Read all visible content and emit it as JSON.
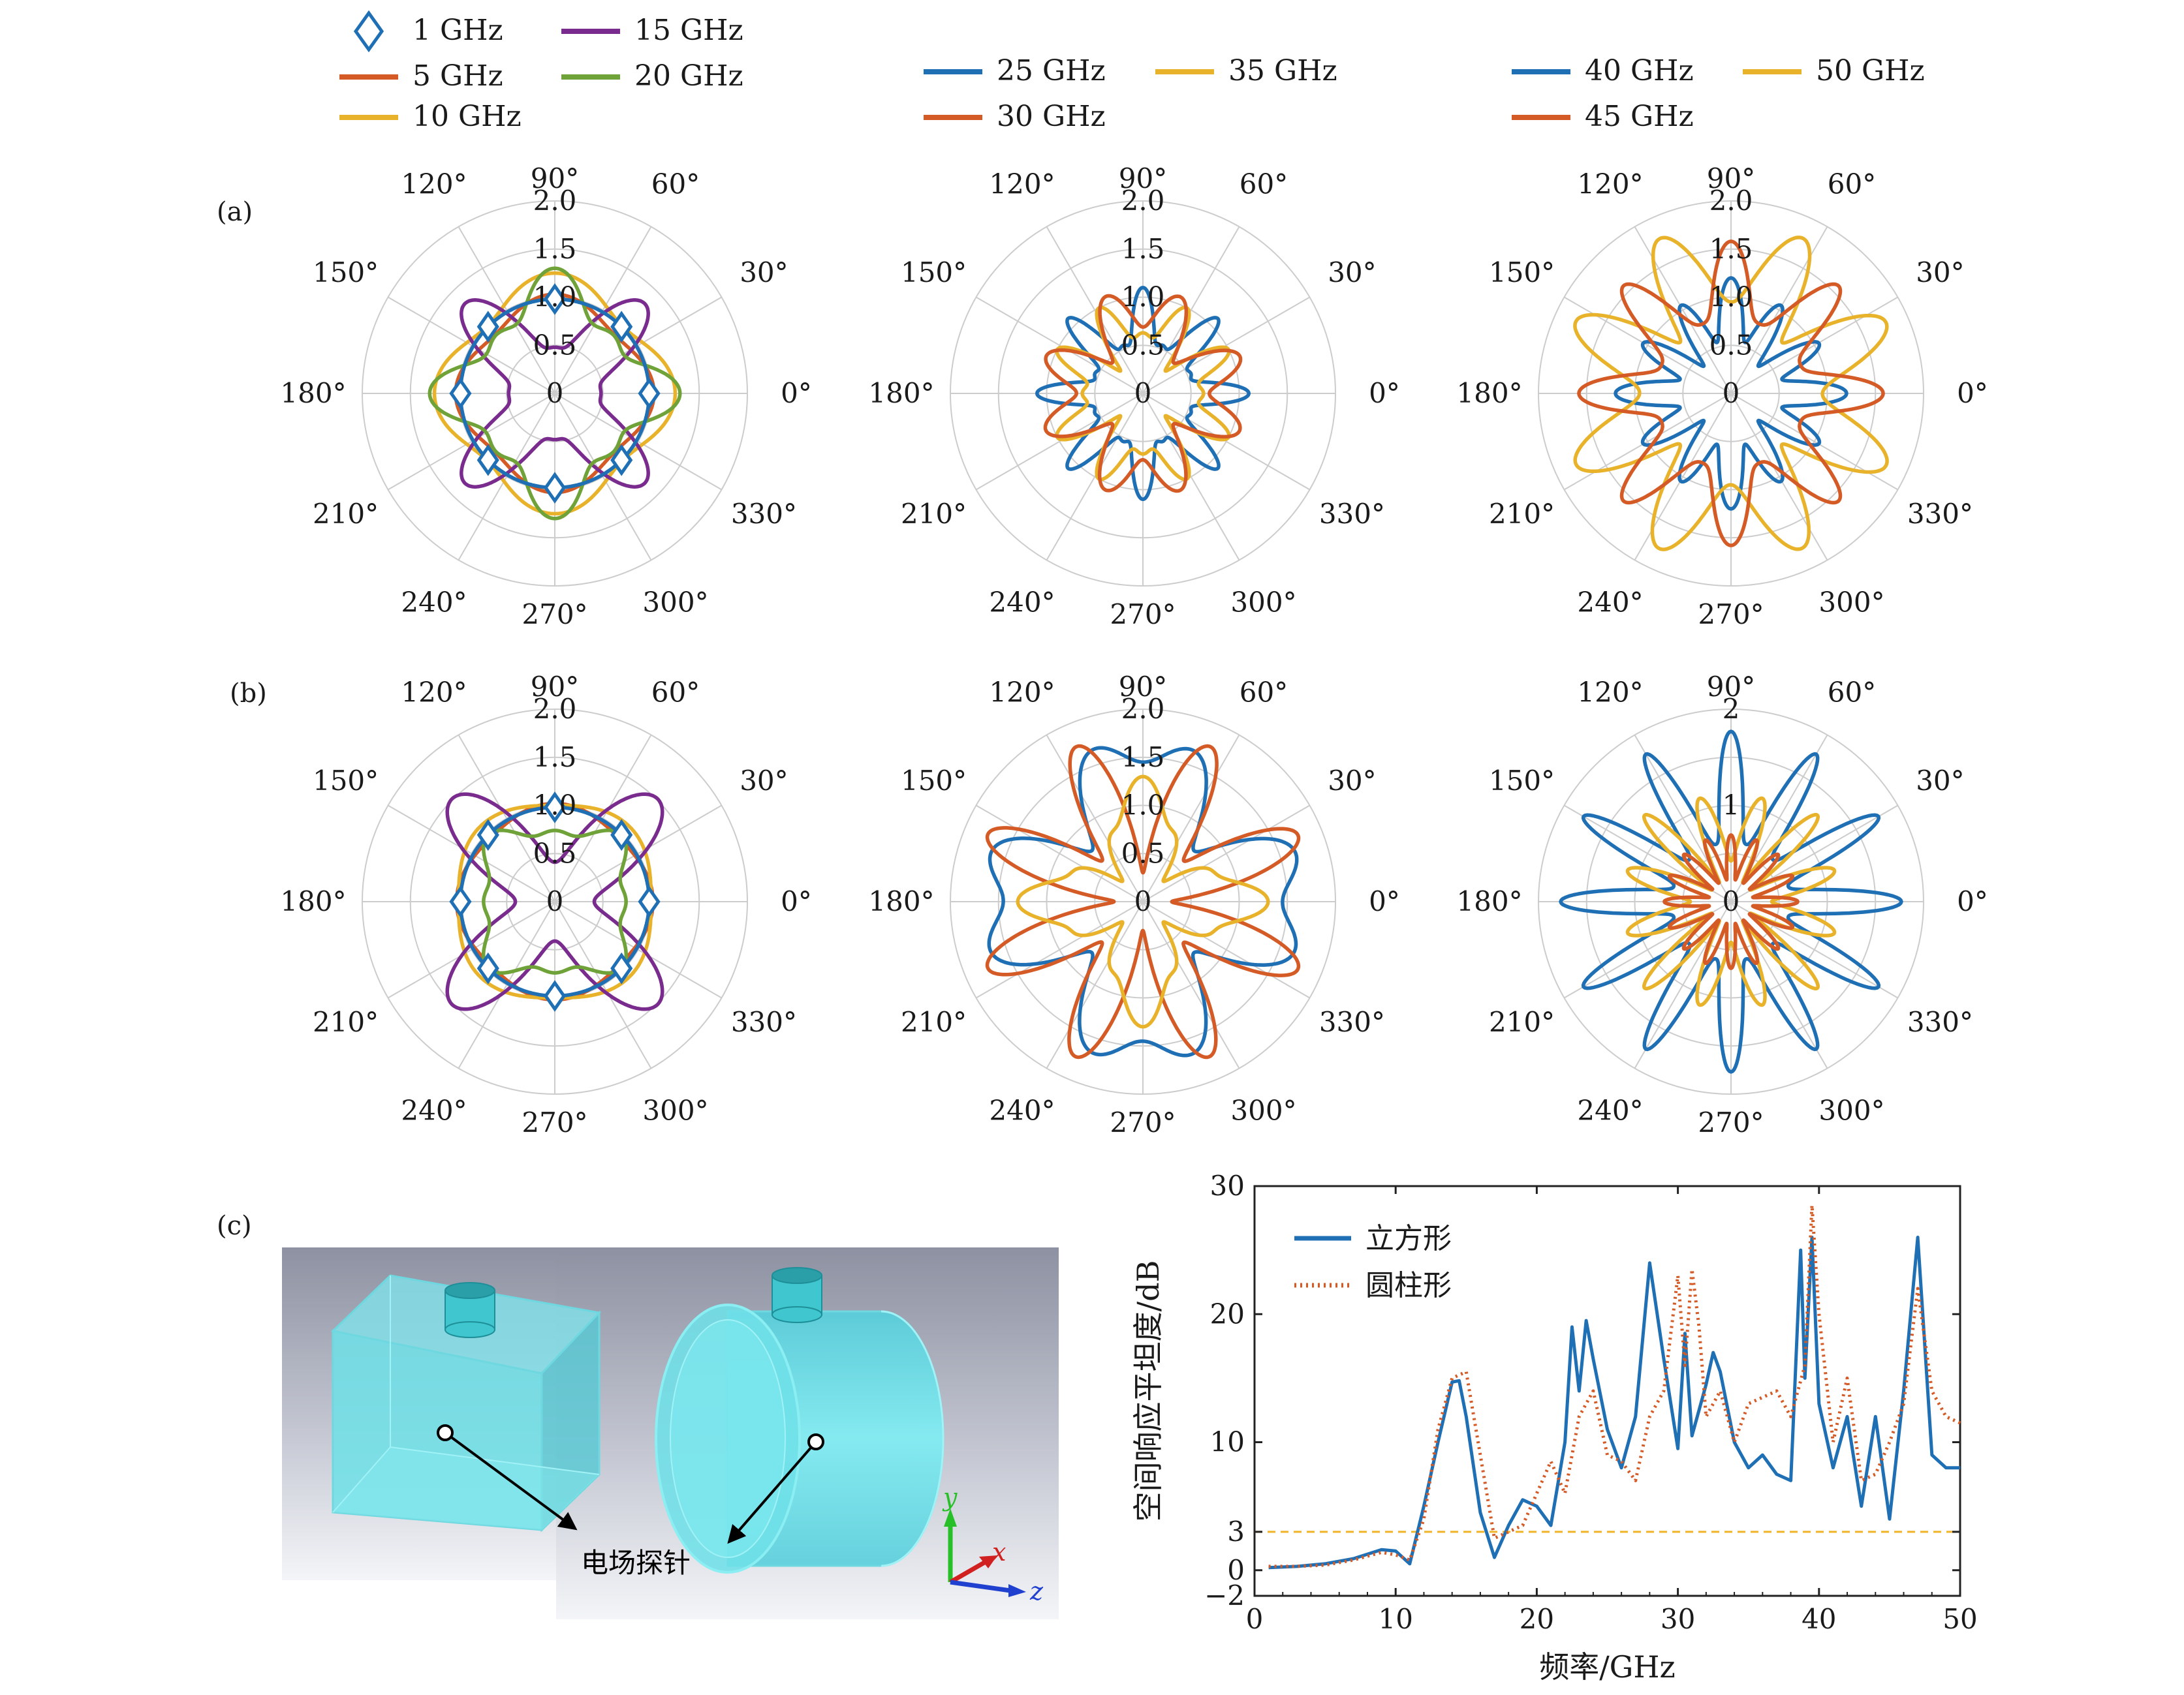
{
  "panel_labels": {
    "a": "(a)",
    "b": "(b)",
    "c": "(c)"
  },
  "colors": {
    "blue": "#1f6fb5",
    "orange": "#d45a26",
    "yellow": "#e8b32a",
    "purple": "#7a2c8e",
    "green": "#6fa238",
    "grid": "#cccccc",
    "ref_line": "#f0b429",
    "cyan": "#5ee0e8"
  },
  "legends": [
    {
      "items": [
        {
          "label": "1 GHz",
          "color": "#1f6fb5",
          "marker": "diamond"
        },
        {
          "label": "15 GHz",
          "color": "#7a2c8e",
          "marker": "line"
        },
        {
          "label": "5 GHz",
          "color": "#d45a26",
          "marker": "line"
        },
        {
          "label": "20 GHz",
          "color": "#6fa238",
          "marker": "line"
        },
        {
          "label": "10 GHz",
          "color": "#e8b32a",
          "marker": "line"
        }
      ]
    },
    {
      "items": [
        {
          "label": "25 GHz",
          "color": "#1f6fb5",
          "marker": "line"
        },
        {
          "label": "35 GHz",
          "color": "#e8b32a",
          "marker": "line"
        },
        {
          "label": "30 GHz",
          "color": "#d45a26",
          "marker": "line"
        }
      ]
    },
    {
      "items": [
        {
          "label": "40 GHz",
          "color": "#1f6fb5",
          "marker": "line"
        },
        {
          "label": "50 GHz",
          "color": "#e8b32a",
          "marker": "line"
        },
        {
          "label": "45 GHz",
          "color": "#d45a26",
          "marker": "line"
        }
      ]
    }
  ],
  "angle_labels": [
    "0°",
    "30°",
    "60°",
    "90°",
    "120°",
    "150°",
    "180°",
    "210°",
    "240°",
    "270°",
    "300°",
    "330°"
  ],
  "polar_plots": [
    {
      "id": "a1",
      "rmax": 2.0,
      "rticks": [
        "0",
        "0.5",
        "1.0",
        "1.5",
        "2.0"
      ],
      "series": [
        {
          "name": "5 GHz",
          "color": "#d45a26",
          "base": 0.95,
          "terms": [
            [
              4,
              0.08,
              0.0
            ]
          ]
        },
        {
          "name": "10 GHz",
          "color": "#e8b32a",
          "base": 1.12,
          "terms": [
            [
              4,
              0.13,
              0.0
            ]
          ]
        },
        {
          "name": "15 GHz",
          "color": "#7a2c8e",
          "base": 0.78,
          "terms": [
            [
              4,
              -0.42,
              0.0
            ],
            [
              8,
              0.12,
              0.0
            ]
          ]
        },
        {
          "name": "20 GHz",
          "color": "#6fa238",
          "base": 0.98,
          "terms": [
            [
              4,
              0.22,
              0.0
            ],
            [
              8,
              0.1,
              0.0
            ]
          ]
        },
        {
          "name": "1 GHz",
          "color": "#1f6fb5",
          "base": 0.98,
          "terms": [
            [
              4,
              0.0,
              0.0
            ]
          ],
          "markers": true
        }
      ]
    },
    {
      "id": "a2",
      "rmax": 2.0,
      "rticks": [
        "0",
        "0.5",
        "1.0",
        "1.5",
        "2.0"
      ],
      "series": [
        {
          "name": "25 GHz",
          "color": "#1f6fb5",
          "base": 0.72,
          "terms": [
            [
              8,
              0.28,
              0.0
            ],
            [
              16,
              0.1,
              0.0
            ]
          ]
        },
        {
          "name": "35 GHz",
          "color": "#e8b32a",
          "base": 0.7,
          "terms": [
            [
              8,
              -0.22,
              0.0
            ],
            [
              12,
              0.15,
              0.0
            ]
          ]
        },
        {
          "name": "30 GHz",
          "color": "#d45a26",
          "base": 0.82,
          "terms": [
            [
              8,
              0.25,
              0.39
            ],
            [
              4,
              0.12,
              0.0
            ]
          ]
        }
      ]
    },
    {
      "id": "a3",
      "rmax": 2.0,
      "rticks": [
        "0",
        "0.5",
        "1.0",
        "1.5",
        "2.0"
      ],
      "series": [
        {
          "name": "40 GHz",
          "color": "#1f6fb5",
          "base": 0.8,
          "terms": [
            [
              12,
              0.3,
              0.0
            ],
            [
              4,
              0.1,
              0.0
            ]
          ]
        },
        {
          "name": "50 GHz",
          "color": "#e8b32a",
          "base": 1.3,
          "terms": [
            [
              8,
              0.45,
              0.39
            ],
            [
              12,
              0.1,
              0.0
            ]
          ]
        },
        {
          "name": "45 GHz",
          "color": "#d45a26",
          "base": 1.1,
          "terms": [
            [
              8,
              0.4,
              0.0
            ],
            [
              16,
              0.08,
              0.0
            ]
          ]
        }
      ]
    },
    {
      "id": "b1",
      "rmax": 2.0,
      "rticks": [
        "0",
        "0.5",
        "1.0",
        "1.5",
        "2.0"
      ],
      "series": [
        {
          "name": "5 GHz",
          "color": "#d45a26",
          "base": 0.98,
          "terms": [
            [
              4,
              0.04,
              0.0
            ]
          ]
        },
        {
          "name": "10 GHz",
          "color": "#e8b32a",
          "base": 1.05,
          "terms": [
            [
              4,
              0.05,
              0.785
            ]
          ]
        },
        {
          "name": "15 GHz",
          "color": "#7a2c8e",
          "base": 0.88,
          "terms": [
            [
              4,
              -0.55,
              0.0
            ],
            [
              8,
              0.08,
              0.0
            ]
          ]
        },
        {
          "name": "20 GHz",
          "color": "#6fa238",
          "base": 0.8,
          "terms": [
            [
              4,
              0.12,
              0.785
            ],
            [
              8,
              0.06,
              0.0
            ]
          ]
        },
        {
          "name": "1 GHz",
          "color": "#1f6fb5",
          "base": 0.98,
          "terms": [
            [
              4,
              0.0,
              0.0
            ]
          ],
          "markers": true
        }
      ]
    },
    {
      "id": "b2",
      "rmax": 2.0,
      "rticks": [
        "0",
        "0.5",
        "1.0",
        "1.5",
        "2.0"
      ],
      "series": [
        {
          "name": "25 GHz",
          "color": "#1f6fb5",
          "base": 1.35,
          "terms": [
            [
              4,
              0.35,
              0.0
            ],
            [
              8,
              0.25,
              0.39
            ]
          ]
        },
        {
          "name": "30 GHz",
          "color": "#d45a26",
          "base": 1.1,
          "terms": [
            [
              8,
              0.65,
              0.39
            ],
            [
              4,
              -0.15,
              0.0
            ]
          ]
        },
        {
          "name": "35 GHz",
          "color": "#e8b32a",
          "base": 0.8,
          "terms": [
            [
              4,
              0.4,
              0.0
            ],
            [
              12,
              0.1,
              0.0
            ]
          ]
        }
      ]
    },
    {
      "id": "b3",
      "rmax": 2.6,
      "rticks": [
        "0",
        "",
        "1",
        "",
        "2"
      ],
      "series": [
        {
          "name": "40 GHz",
          "color": "#1f6fb5",
          "base": 1.4,
          "terms": [
            [
              12,
              0.75,
              0.0
            ],
            [
              24,
              0.15,
              0.0
            ]
          ]
        },
        {
          "name": "50 GHz",
          "color": "#e8b32a",
          "base": 0.95,
          "terms": [
            [
              12,
              -0.55,
              0.0
            ],
            [
              16,
              0.15,
              0.0
            ]
          ]
        },
        {
          "name": "45 GHz",
          "color": "#d45a26",
          "base": 0.6,
          "terms": [
            [
              16,
              0.3,
              0.0
            ]
          ]
        }
      ]
    }
  ],
  "diagram": {
    "probe_label": "电场探针",
    "axis_labels": {
      "y": "y",
      "x": "x",
      "z": "z"
    }
  },
  "chart_data": {
    "type": "line",
    "title": "",
    "xlabel": "频率/GHz",
    "ylabel": "空间响应平坦度/dB",
    "xlim": [
      0,
      50
    ],
    "ylim": [
      -2,
      30
    ],
    "xticks": [
      "0",
      "10",
      "20",
      "30",
      "40",
      "50"
    ],
    "yticks": [
      {
        "value": -2,
        "label": "−2"
      },
      {
        "value": 0,
        "label": "0"
      },
      {
        "value": 3,
        "label": "3"
      },
      {
        "value": 10,
        "label": "10"
      },
      {
        "value": 20,
        "label": "20"
      },
      {
        "value": 30,
        "label": "30"
      }
    ],
    "reference_line": {
      "y": 3,
      "color": "#f0b429",
      "style": "dashed"
    },
    "legend_position": "top-left",
    "series": [
      {
        "name": "立方形",
        "color": "#1f6fb5",
        "style": "solid",
        "x": [
          1,
          3,
          5,
          7,
          9,
          10,
          11,
          12,
          13,
          14,
          14.5,
          15,
          16,
          17,
          18,
          19,
          20,
          21,
          22,
          22.5,
          23,
          23.5,
          24,
          25,
          26,
          27,
          28,
          29,
          30,
          30.5,
          31,
          32,
          32.5,
          33,
          34,
          35,
          36,
          37,
          38,
          38.7,
          39,
          39.5,
          40,
          41,
          42,
          43,
          44,
          45,
          46,
          47,
          48,
          49,
          50
        ],
        "y": [
          0.2,
          0.3,
          0.5,
          0.9,
          1.6,
          1.5,
          0.5,
          5.0,
          10.0,
          14.7,
          14.8,
          12.0,
          4.5,
          1.0,
          3.5,
          5.5,
          5.0,
          3.5,
          10.0,
          19.0,
          14.0,
          19.5,
          16.5,
          11.0,
          8.0,
          12.0,
          24.0,
          16.5,
          9.5,
          18.5,
          10.5,
          14.5,
          17.0,
          15.5,
          10.0,
          8.0,
          9.0,
          7.5,
          7.0,
          25.0,
          15.0,
          26.0,
          13.0,
          8.0,
          12.0,
          5.0,
          12.0,
          4.0,
          14.0,
          26.0,
          9.0,
          8.0,
          8.0
        ]
      },
      {
        "name": "圆柱形",
        "color": "#d45a26",
        "style": "dotted",
        "x": [
          1,
          3,
          5,
          7,
          9,
          10,
          11,
          12,
          13,
          14,
          15,
          16,
          17,
          18,
          19,
          20,
          21,
          22,
          23,
          24,
          25,
          26,
          27,
          28,
          29,
          30,
          30.5,
          31,
          31.5,
          32,
          33,
          34,
          35,
          36,
          37,
          38,
          39,
          39.5,
          40,
          41,
          42,
          43,
          44,
          45,
          46,
          47,
          48,
          49,
          50
        ],
        "y": [
          0.3,
          0.3,
          0.4,
          0.8,
          1.4,
          1.2,
          0.8,
          4.0,
          11.0,
          15.0,
          15.5,
          9.0,
          2.5,
          3.0,
          3.5,
          6.0,
          8.5,
          6.0,
          12.0,
          14.0,
          9.0,
          8.5,
          7.0,
          12.0,
          14.0,
          23.0,
          16.0,
          23.5,
          19.0,
          12.0,
          14.0,
          10.0,
          13.0,
          13.5,
          14.0,
          12.0,
          16.0,
          28.5,
          20.0,
          10.0,
          15.0,
          7.0,
          7.5,
          10.0,
          13.0,
          22.0,
          14.0,
          12.0,
          11.5
        ]
      }
    ]
  }
}
